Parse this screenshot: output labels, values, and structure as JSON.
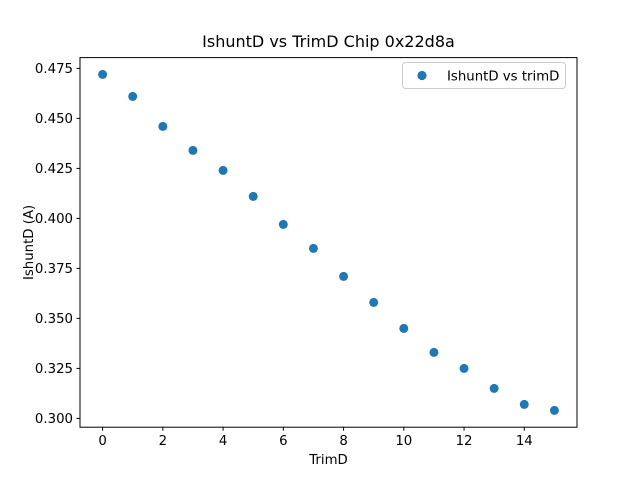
{
  "figure": {
    "background": "#ffffff",
    "spine_color": "#000000",
    "marker_color": "#1f77b4",
    "legend_border_color": "#cccccc"
  },
  "chart_data": {
    "type": "scatter",
    "title": "IshuntD vs TrimD Chip 0x22d8a",
    "xlabel": "TrimD",
    "ylabel": "IshuntD (A)",
    "legend": {
      "position": "upper right",
      "entries": [
        {
          "label": "IshuntD vs trimD",
          "marker": "circle",
          "color": "#1f77b4"
        }
      ]
    },
    "x": [
      0,
      1,
      2,
      3,
      4,
      5,
      6,
      7,
      8,
      9,
      10,
      11,
      12,
      13,
      14,
      15
    ],
    "y": [
      0.472,
      0.461,
      0.446,
      0.434,
      0.424,
      0.411,
      0.397,
      0.385,
      0.371,
      0.358,
      0.345,
      0.333,
      0.325,
      0.315,
      0.307,
      0.304
    ],
    "series_name": "IshuntD vs trimD",
    "xlim": [
      -0.75,
      15.75
    ],
    "ylim": [
      0.2956,
      0.4804
    ],
    "xticks": [
      0,
      2,
      4,
      6,
      8,
      10,
      12,
      14
    ],
    "xtick_labels": [
      "0",
      "2",
      "4",
      "6",
      "8",
      "10",
      "12",
      "14"
    ],
    "yticks": [
      0.3,
      0.325,
      0.35,
      0.375,
      0.4,
      0.425,
      0.45,
      0.475
    ],
    "ytick_labels": [
      "0.300",
      "0.325",
      "0.350",
      "0.375",
      "0.400",
      "0.425",
      "0.450",
      "0.475"
    ],
    "grid": false,
    "marker_diameter_px": 9
  }
}
